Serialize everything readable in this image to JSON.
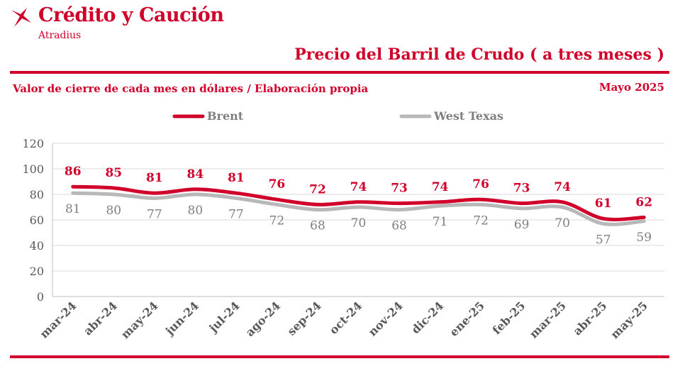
{
  "header": {
    "brand": "Crédito y Caución",
    "brand_sub": "Atradius",
    "title": "Precio del Barril de Crudo ( a tres meses )",
    "subtitle": "Valor de cierre de cada mes en dólares / Elaboración propia",
    "date": "Mayo  2025"
  },
  "colors": {
    "brent": "#d0002a",
    "wti": "#b8b8b8",
    "accent": "#d0002a",
    "grid": "#d9d9d9",
    "axis_text": "#595959"
  },
  "icons": {
    "logo": "atradius-swirl-icon"
  },
  "chart_data": {
    "type": "line",
    "categories": [
      "mar-24",
      "abr-24",
      "may-24",
      "jun-24",
      "jul-24",
      "ago-24",
      "sep-24",
      "oct-24",
      "nov-24",
      "dic-24",
      "ene-25",
      "feb-25",
      "mar-25",
      "abr-25",
      "may-25"
    ],
    "series": [
      {
        "name": "Brent",
        "values": [
          86,
          85,
          81,
          84,
          81,
          76,
          72,
          74,
          73,
          74,
          76,
          73,
          74,
          61,
          62
        ]
      },
      {
        "name": "West Texas",
        "values": [
          81,
          80,
          77,
          80,
          77,
          72,
          68,
          70,
          68,
          71,
          72,
          69,
          70,
          57,
          59
        ]
      }
    ],
    "ylim": [
      0,
      120
    ],
    "yticks": [
      0,
      20,
      40,
      60,
      80,
      100,
      120
    ],
    "grid": true,
    "legend": "top",
    "data_labels": true
  }
}
